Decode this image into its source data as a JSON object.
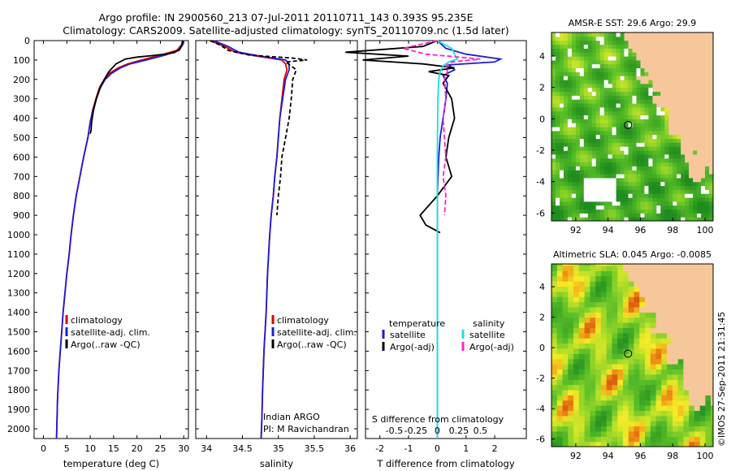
{
  "header": {
    "line1": "Argo profile: IN 2900560_213 07-Jul-2011 20110711_143 0.393S 95.235E",
    "line2": "Climatology: CARS2009. Satellite-adjusted climatology: synTS_20110709.nc (1.5d later)"
  },
  "colors": {
    "climatology": "#e00000",
    "satellite": "#1c1cd8",
    "argo": "#000000",
    "sal_satellite": "#18e0e8",
    "sal_argo": "#ff22cc",
    "land": "#f7c79c",
    "nodata": "#ffffff"
  },
  "depth_axis": {
    "ticks": [
      0,
      100,
      200,
      300,
      400,
      500,
      600,
      700,
      800,
      900,
      1000,
      1100,
      1200,
      1300,
      1400,
      1500,
      1600,
      1700,
      1800,
      1900,
      2000
    ],
    "range": [
      0,
      2050
    ]
  },
  "chart_data": [
    {
      "type": "line",
      "id": "temperature",
      "xlabel": "temperature (deg C)",
      "ylabel": "",
      "xlim": [
        -2,
        31
      ],
      "xticks": [
        0,
        5,
        10,
        15,
        20,
        25,
        30
      ],
      "ylim": [
        0,
        2050
      ],
      "legend": [
        "climatology",
        "satellite-adj. clim.",
        "Argo(..raw -QC)"
      ],
      "series": [
        {
          "name": "climatology",
          "color": "#e00000",
          "dash": "",
          "x": [
            29.7,
            29.6,
            28.5,
            25,
            21,
            18,
            16,
            14,
            13,
            12,
            11.2,
            10.5,
            10,
            9.5,
            8.6,
            7.8,
            7,
            6.4,
            5.9,
            5.5,
            5,
            4.6,
            4.2,
            3.9,
            3.6,
            3.3,
            3.0,
            2.8
          ],
          "y": [
            0,
            20,
            50,
            75,
            100,
            120,
            140,
            170,
            200,
            240,
            300,
            360,
            420,
            500,
            600,
            700,
            800,
            900,
            1000,
            1100,
            1200,
            1300,
            1400,
            1500,
            1600,
            1700,
            1850,
            2050
          ]
        },
        {
          "name": "satellite-adj. clim.",
          "color": "#1c1cd8",
          "dash": "",
          "x": [
            29.9,
            29.8,
            29,
            26,
            22,
            18.5,
            16.5,
            14.5,
            13.2,
            12.2,
            11.3,
            10.6,
            10,
            9.5,
            8.6,
            7.8,
            7,
            6.4,
            5.9,
            5.5,
            5,
            4.6,
            4.2,
            3.9,
            3.6,
            3.3,
            3.0,
            2.8
          ],
          "y": [
            0,
            20,
            50,
            75,
            100,
            120,
            140,
            170,
            200,
            240,
            300,
            360,
            420,
            500,
            600,
            700,
            800,
            900,
            1000,
            1100,
            1200,
            1300,
            1400,
            1500,
            1600,
            1700,
            1850,
            2050
          ]
        },
        {
          "name": "Argo(..raw -QC)",
          "color": "#000000",
          "dash": "",
          "x": [
            29.8,
            29.6,
            29.1,
            28,
            26,
            23,
            20,
            17.5,
            15.5,
            14,
            13,
            12,
            11.3,
            10.7,
            10.3,
            10.2,
            10
          ],
          "y": [
            0,
            20,
            45,
            62,
            70,
            78,
            85,
            95,
            120,
            160,
            200,
            250,
            300,
            360,
            420,
            460,
            480
          ]
        }
      ]
    },
    {
      "type": "line",
      "id": "salinity",
      "xlabel": "salinity",
      "ylabel": "",
      "xlim": [
        33.85,
        36.1
      ],
      "xticks": [
        34,
        34.5,
        35,
        35.5,
        36
      ],
      "ylim": [
        0,
        2050
      ],
      "legend": [
        "climatology",
        "satellite-adj. clim.",
        "Argo(..raw -QC)"
      ],
      "annotation": [
        "Indian ARGO",
        "PI: M Ravichandran"
      ],
      "series": [
        {
          "name": "climatology",
          "color": "#e00000",
          "dash": "",
          "x": [
            34.05,
            34.25,
            34.4,
            34.7,
            35.05,
            35.1,
            35.12,
            35.08,
            35.05,
            35.02,
            35.0,
            34.98,
            34.95,
            34.93,
            34.9,
            34.88,
            34.85,
            34.83,
            34.8,
            34.78,
            34.77,
            34.76
          ],
          "y": [
            0,
            30,
            60,
            80,
            100,
            120,
            150,
            200,
            300,
            400,
            500,
            600,
            700,
            800,
            900,
            1000,
            1200,
            1400,
            1600,
            1800,
            1950,
            2050
          ]
        },
        {
          "name": "satellite-adj. clim.",
          "color": "#1c1cd8",
          "dash": "",
          "x": [
            34.1,
            34.3,
            34.45,
            34.75,
            35.1,
            35.15,
            35.15,
            35.1,
            35.06,
            35.02,
            35.0,
            34.98,
            34.95,
            34.93,
            34.9,
            34.88,
            34.85,
            34.83,
            34.8,
            34.78,
            34.77,
            34.76
          ],
          "y": [
            0,
            30,
            60,
            80,
            100,
            120,
            150,
            200,
            300,
            400,
            500,
            600,
            700,
            800,
            900,
            1000,
            1200,
            1400,
            1600,
            1800,
            1950,
            2050
          ]
        },
        {
          "name": "Argo(..raw -QC)",
          "color": "#000000",
          "dash": "5,3",
          "x": [
            34.05,
            34.2,
            34.3,
            34.6,
            35.2,
            35.4,
            35.1,
            35.25,
            35.2,
            35.18,
            35.15,
            35.1,
            35.05,
            35.03,
            35.0,
            34.98
          ],
          "y": [
            0,
            25,
            50,
            75,
            90,
            100,
            110,
            150,
            200,
            300,
            400,
            500,
            600,
            700,
            800,
            900
          ]
        }
      ]
    },
    {
      "type": "line",
      "id": "differences",
      "xlabel": "T difference from climatology",
      "top_label": "S difference from climatology",
      "xlim": [
        -2.5,
        3.1
      ],
      "xticks": [
        -2,
        -1,
        0,
        1,
        2
      ],
      "sticks": [
        "-0.5",
        "-0.25",
        "0",
        "0.25",
        "0.5"
      ],
      "ylim": [
        0,
        2050
      ],
      "legend": {
        "temperature": [
          "satellite",
          "Argo(-adj)"
        ],
        "salinity": [
          "satellite",
          "Argo(-adj)"
        ],
        "headers": [
          "temperature",
          "salinity"
        ]
      },
      "series": [
        {
          "name": "T satellite",
          "color": "#1c1cd8",
          "dash": "",
          "x": [
            0,
            0.3,
            1.0,
            2.2,
            2.0,
            0.4,
            0.6,
            0.2,
            0.35,
            0.3,
            0.2,
            0.1,
            0.05,
            0,
            0,
            0
          ],
          "y": [
            0,
            40,
            70,
            95,
            110,
            125,
            150,
            180,
            220,
            300,
            400,
            500,
            600,
            800,
            1200,
            2050
          ]
        },
        {
          "name": "T Argo(-adj)",
          "color": "#000000",
          "dash": "",
          "x": [
            0,
            -0.5,
            -3.2,
            -1.0,
            -2.6,
            -0.5,
            0.6,
            -0.3,
            0.4,
            0.2,
            0.5,
            0.6,
            0.4,
            0.3,
            0.5,
            0.0,
            -0.6,
            -0.4,
            0.1
          ],
          "y": [
            0,
            30,
            60,
            80,
            100,
            120,
            140,
            160,
            180,
            220,
            300,
            400,
            500,
            600,
            700,
            800,
            900,
            950,
            990
          ]
        },
        {
          "name": "S satellite",
          "color": "#18e0e8",
          "dash": "",
          "x": [
            0,
            0.5,
            0.6,
            0.7,
            0.4,
            0.2,
            0.1,
            0.05,
            0.02,
            0,
            0,
            0
          ],
          "y": [
            0,
            40,
            70,
            95,
            110,
            130,
            160,
            200,
            300,
            600,
            1200,
            2050
          ]
        },
        {
          "name": "S Argo(-adj)",
          "color": "#ff22cc",
          "dash": "6,3",
          "x": [
            0,
            -1.2,
            -0.4,
            1.5,
            0.5,
            0.3,
            0.35,
            0.25,
            0.3,
            0.2,
            0.25,
            0.3,
            0.2,
            0.3,
            0.25
          ],
          "y": [
            0,
            40,
            70,
            95,
            110,
            130,
            160,
            200,
            300,
            400,
            500,
            600,
            700,
            800,
            900
          ]
        }
      ]
    },
    {
      "type": "heatmap",
      "id": "sst_map",
      "title": "AMSR-E SST: 29.6 Argo: 29.9",
      "xlim": [
        90.5,
        100.5
      ],
      "ylim": [
        -6.5,
        5.5
      ],
      "xticks": [
        92,
        94,
        96,
        98,
        100
      ],
      "yticks": [
        -6,
        -4,
        -2,
        0,
        2,
        4
      ],
      "argo_marker": [
        95.235,
        -0.393
      ],
      "colorscale": "jet"
    },
    {
      "type": "heatmap",
      "id": "sla_map",
      "title": "Altimetric SLA: 0.045 Argo: -0.0085",
      "xlim": [
        90.5,
        100.5
      ],
      "ylim": [
        -6.5,
        5.5
      ],
      "xticks": [
        92,
        94,
        96,
        98,
        100
      ],
      "yticks": [
        -6,
        -4,
        -2,
        0,
        2,
        4
      ],
      "argo_marker": [
        95.235,
        -0.393
      ],
      "colorscale": "jet"
    }
  ],
  "footer": {
    "credit": "©IMOS 27-Sep-2011 21:31:45"
  }
}
